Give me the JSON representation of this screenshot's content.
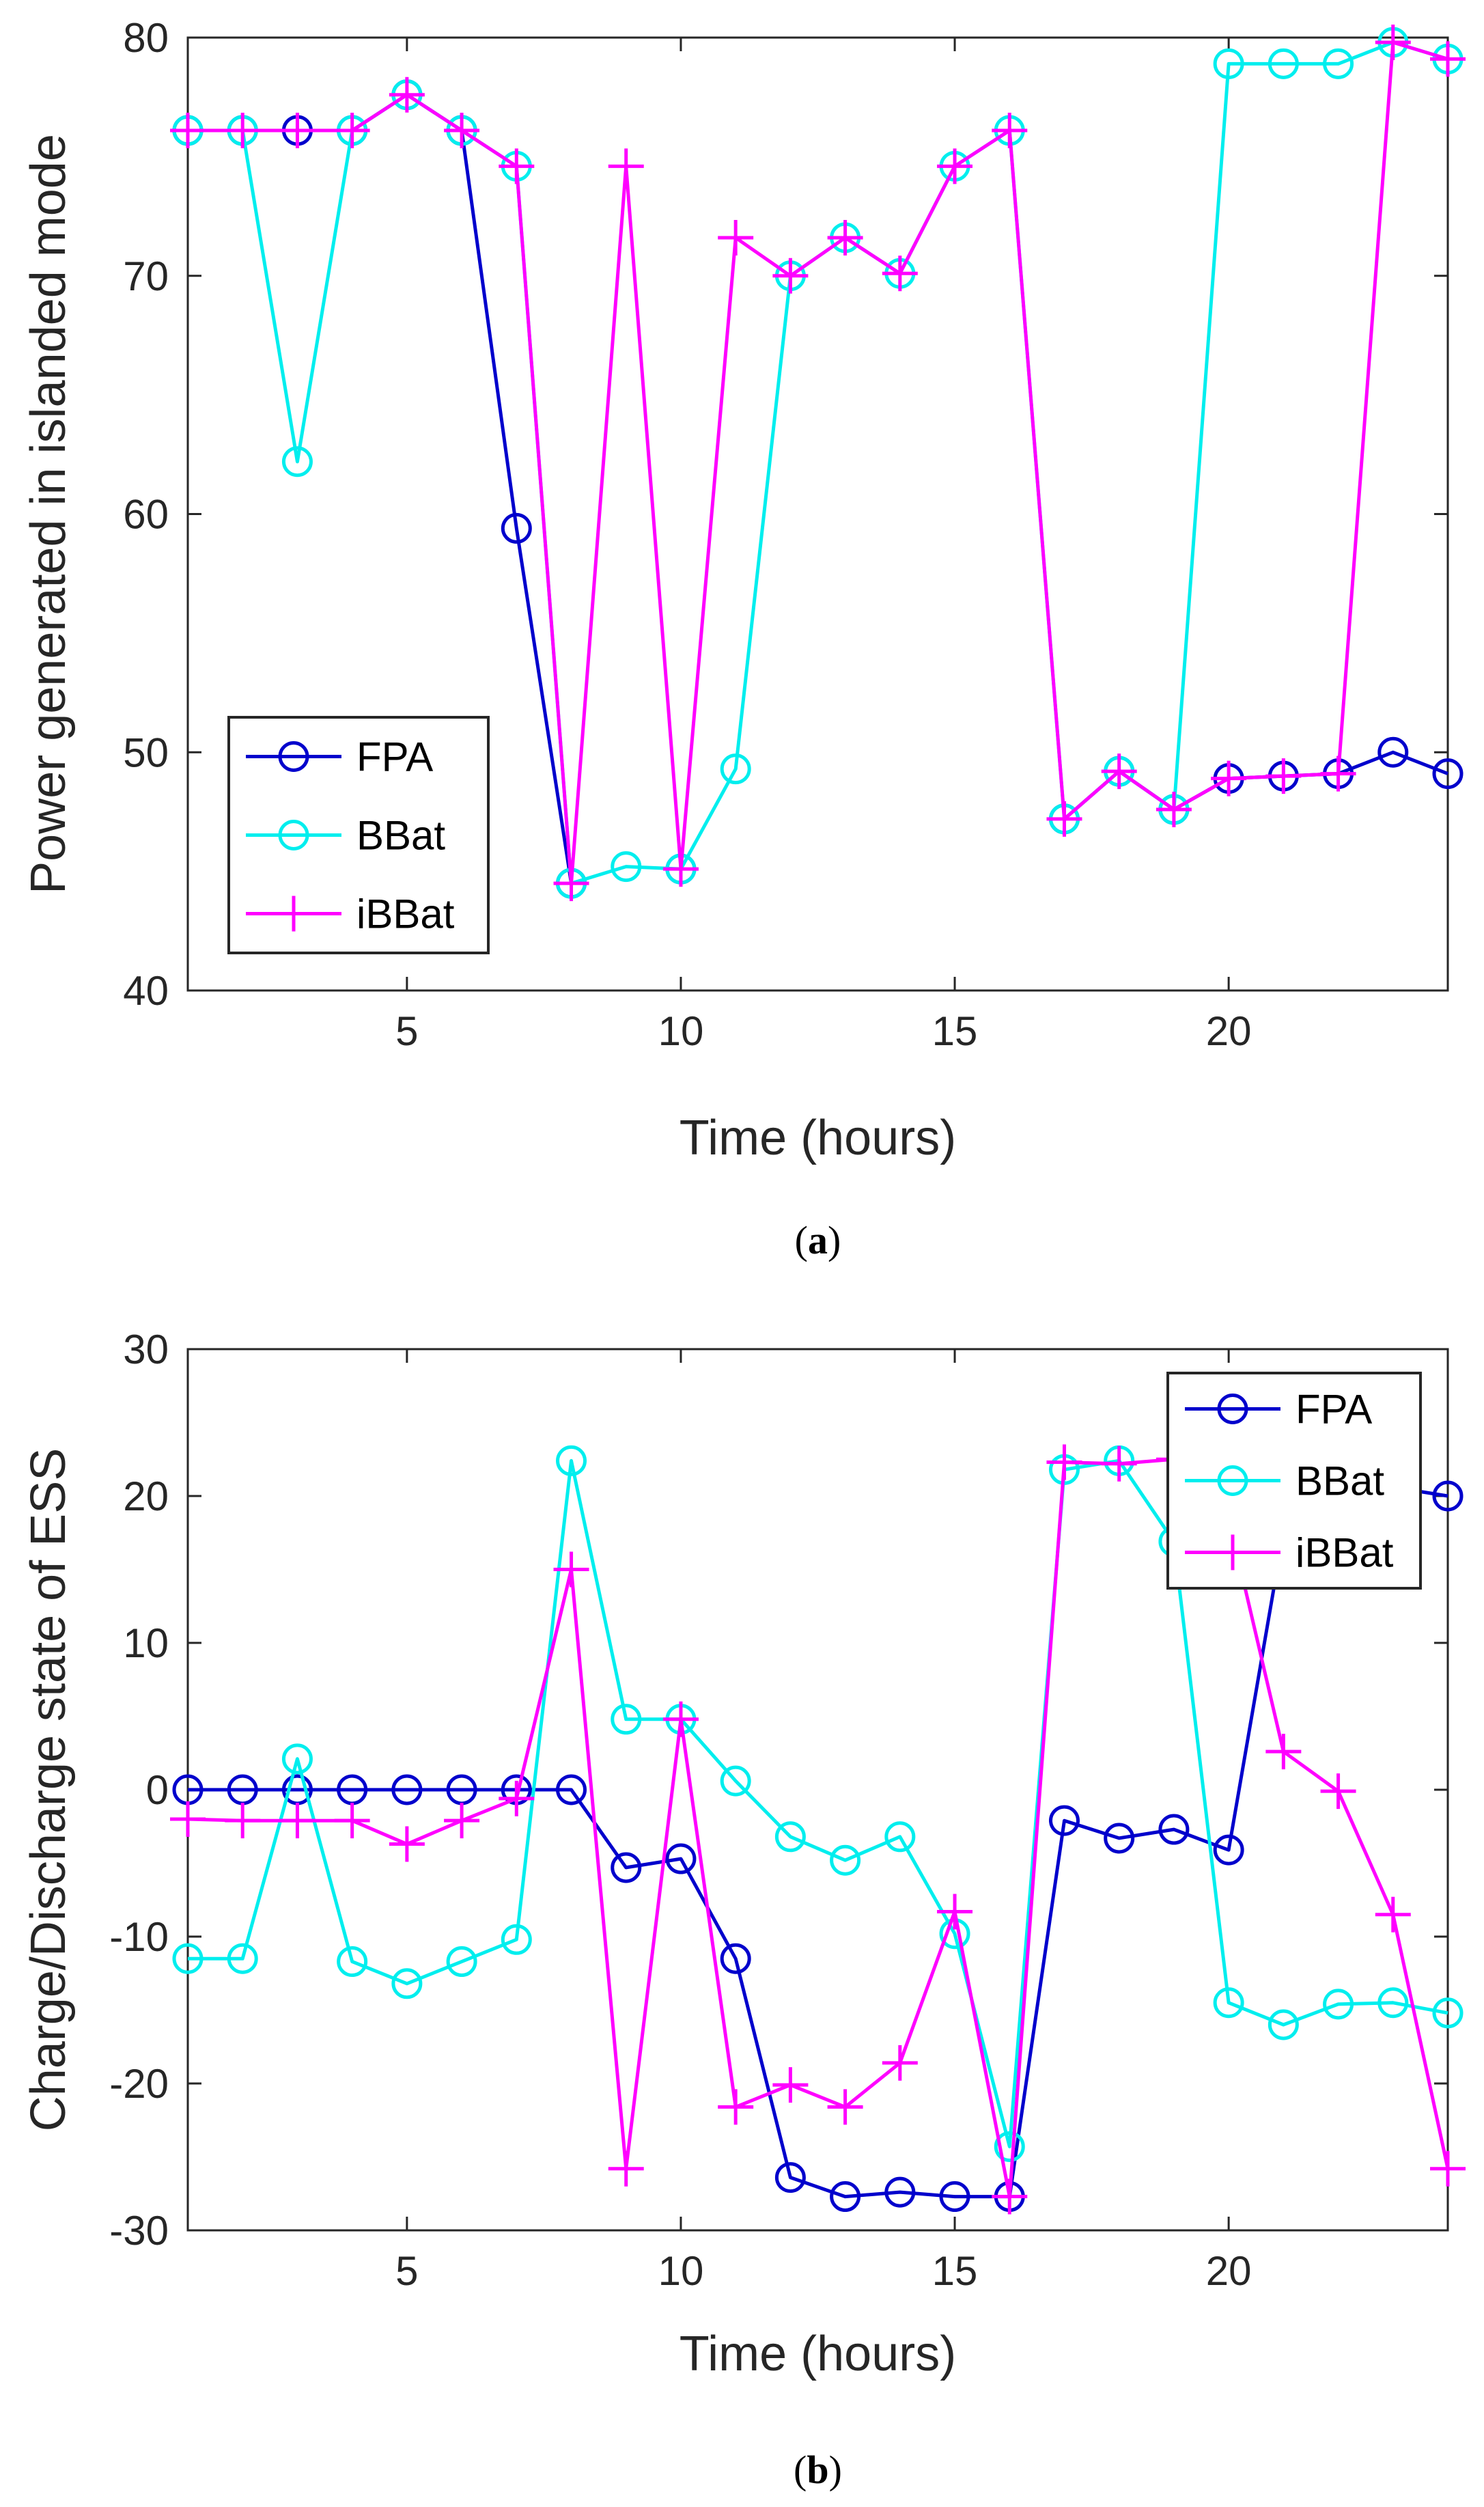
{
  "chart_data": [
    {
      "type": "line",
      "caption_open": "(",
      "caption_letter": "a",
      "caption_close": ")",
      "xlabel": "Time (hours)",
      "ylabel": "Power generated in islanded mode",
      "xlim": [
        1,
        24
      ],
      "ylim": [
        40,
        80
      ],
      "xticks": [
        5,
        10,
        15,
        20
      ],
      "yticks": [
        40,
        50,
        60,
        70,
        80
      ],
      "grid": false,
      "legend_position": "bottom-left",
      "x": [
        1,
        2,
        3,
        4,
        5,
        6,
        7,
        8,
        9,
        10,
        11,
        12,
        13,
        14,
        15,
        16,
        17,
        18,
        19,
        20,
        21,
        22,
        23,
        24
      ],
      "series": [
        {
          "name": "FPA",
          "color": "#0000cc",
          "marker": "circle",
          "values": [
            76.1,
            76.1,
            76.1,
            76.1,
            77.6,
            76.1,
            59.4,
            44.5,
            null,
            45.1,
            null,
            null,
            null,
            null,
            null,
            null,
            47.2,
            49.2,
            47.6,
            48.9,
            49.0,
            49.1,
            50.0,
            49.1
          ]
        },
        {
          "name": "BBat",
          "color": "#00eeee",
          "marker": "circle",
          "values": [
            76.1,
            76.1,
            62.2,
            76.1,
            77.6,
            76.1,
            74.6,
            44.5,
            45.2,
            45.1,
            49.3,
            70.0,
            71.6,
            70.1,
            74.6,
            76.1,
            47.2,
            49.2,
            47.6,
            78.9,
            78.9,
            78.9,
            79.8,
            79.1
          ]
        },
        {
          "name": "iBBat",
          "color": "#ff00ff",
          "marker": "plus",
          "values": [
            76.1,
            76.1,
            76.1,
            76.1,
            77.6,
            76.1,
            74.6,
            44.5,
            74.6,
            45.1,
            71.6,
            70.0,
            71.6,
            70.1,
            74.6,
            76.1,
            47.2,
            49.2,
            47.6,
            48.9,
            49.0,
            49.1,
            79.8,
            79.1
          ]
        }
      ]
    },
    {
      "type": "line",
      "caption_open": "(",
      "caption_letter": "b",
      "caption_close": ")",
      "xlabel": "Time (hours)",
      "ylabel": "Charge/Discharge state of ESS",
      "xlim": [
        1,
        24
      ],
      "ylim": [
        -30,
        30
      ],
      "xticks": [
        5,
        10,
        15,
        20
      ],
      "yticks": [
        -30,
        -20,
        -10,
        0,
        10,
        20,
        30
      ],
      "grid": false,
      "legend_position": "top-right",
      "x": [
        1,
        2,
        3,
        4,
        5,
        6,
        7,
        8,
        9,
        10,
        11,
        12,
        13,
        14,
        15,
        16,
        17,
        18,
        19,
        20,
        21,
        22,
        23,
        24
      ],
      "series": [
        {
          "name": "FPA",
          "color": "#0000cc",
          "marker": "circle",
          "values": [
            0,
            0,
            0,
            0,
            0,
            0,
            0,
            0,
            -5.3,
            -4.7,
            -11.5,
            -26.4,
            -27.7,
            -27.4,
            -27.7,
            -27.7,
            -2.1,
            -3.3,
            -2.7,
            -4.1,
            17.5,
            21.0,
            20.6,
            20.0
          ]
        },
        {
          "name": "BBat",
          "color": "#00eeee",
          "marker": "circle",
          "values": [
            -11.5,
            -11.5,
            2.1,
            -11.7,
            -13.2,
            -11.7,
            -10.2,
            22.4,
            4.8,
            4.8,
            0.6,
            -3.2,
            -4.8,
            -3.2,
            -9.8,
            -24.3,
            21.8,
            22.4,
            16.9,
            -14.5,
            -16.0,
            -14.6,
            -14.5,
            -15.2
          ]
        },
        {
          "name": "iBBat",
          "color": "#ff00ff",
          "marker": "plus",
          "values": [
            -2.0,
            -2.1,
            -2.1,
            -2.1,
            -3.7,
            -2.1,
            -0.6,
            15.0,
            -25.8,
            4.8,
            -21.6,
            -20.1,
            -21.6,
            -18.6,
            -8.3,
            -27.7,
            22.3,
            22.2,
            22.5,
            18.5,
            2.6,
            -0.1,
            -8.5,
            -25.8
          ]
        }
      ]
    }
  ]
}
